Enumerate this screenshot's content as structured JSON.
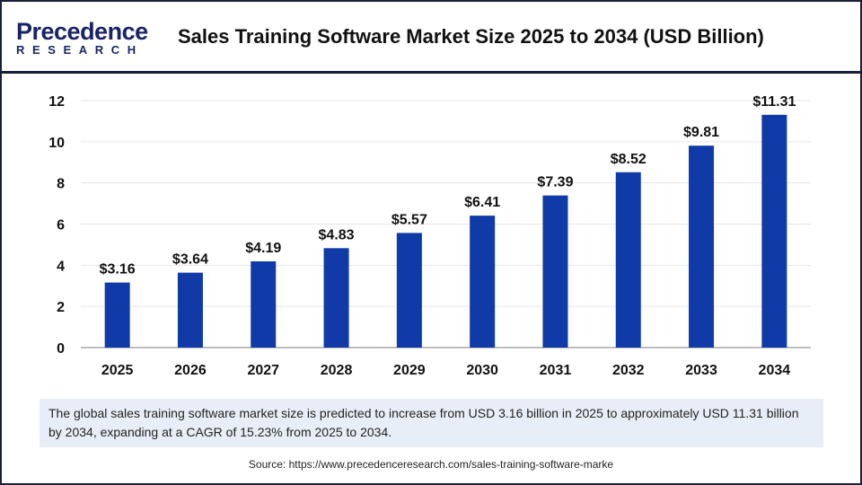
{
  "logo": {
    "line1": "Precedence",
    "line2": "RESEARCH"
  },
  "chart_data": {
    "type": "bar",
    "title": "Sales Training Software Market Size 2025 to 2034 (USD Billion)",
    "categories": [
      "2025",
      "2026",
      "2027",
      "2028",
      "2029",
      "2030",
      "2031",
      "2032",
      "2033",
      "2034"
    ],
    "values": [
      3.16,
      3.64,
      4.19,
      4.83,
      5.57,
      6.41,
      7.39,
      8.52,
      9.81,
      11.31
    ],
    "data_labels": [
      "$3.16",
      "$3.64",
      "$4.19",
      "$4.83",
      "$5.57",
      "$6.41",
      "$7.39",
      "$8.52",
      "$9.81",
      "$11.31"
    ],
    "yticks": [
      "0",
      "2",
      "4",
      "6",
      "8",
      "10",
      "12"
    ],
    "ylim": [
      0,
      12
    ],
    "grid": true,
    "bar_color": "#0f3aa8",
    "xlabel": "",
    "ylabel": ""
  },
  "caption": "The global sales training software market size is predicted to increase from USD 3.16 billion in 2025 to approximately USD 11.31 billion by 2034, expanding at a CAGR of 15.23% from 2025 to 2034.",
  "source": "Source: https://www.precedenceresearch.com/sales-training-software-marke"
}
